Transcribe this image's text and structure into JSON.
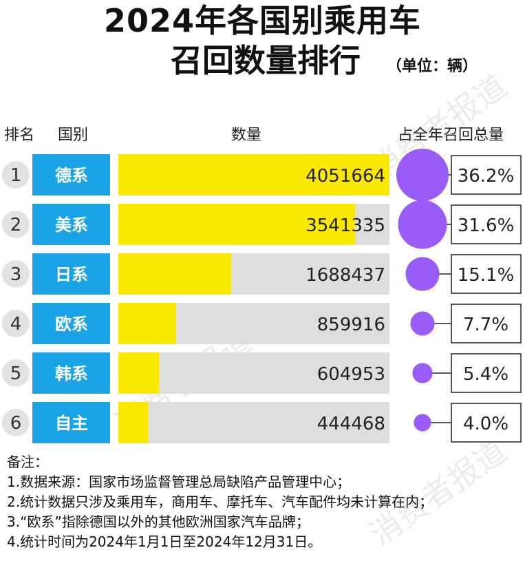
{
  "title_line1": "2024年各国别乘用车",
  "title_line2": "召回数量排行",
  "unit": "（单位：辆）",
  "headers": {
    "rank": "排名",
    "country": "国别",
    "quantity": "数量",
    "share": "占全年召回总量"
  },
  "watermark": "消费者报道",
  "colors": {
    "bar_fill": "#f9e900",
    "bar_track": "#dedede",
    "label_bg": "#1aa3e6",
    "bubble": "#9a5cf6",
    "rank_bg": "#e2e2e2"
  },
  "chart_data": {
    "type": "bar",
    "orientation": "horizontal",
    "title": "2024年各国别乘用车召回数量排行",
    "unit": "辆",
    "ranks": [
      "1",
      "2",
      "3",
      "4",
      "5",
      "6"
    ],
    "categories": [
      "德系",
      "美系",
      "日系",
      "欧系",
      "韩系",
      "自主"
    ],
    "values": [
      4051664,
      3541335,
      1688437,
      859916,
      604953,
      444468
    ],
    "value_labels": [
      "4051664",
      "3541335",
      "1688437",
      "859916",
      "604953",
      "444468"
    ],
    "share_values": [
      36.2,
      31.6,
      15.1,
      7.7,
      5.4,
      4.0
    ],
    "share_labels": [
      "36.2%",
      "31.6%",
      "15.1%",
      "7.7%",
      "5.4%",
      "4.0%"
    ],
    "xlim": [
      0,
      4051664
    ]
  },
  "notes": {
    "title": "备注：",
    "items": [
      "1.数据来源：国家市场监督管理总局缺陷产品管理中心；",
      "2.统计数据只涉及乘用车，商用车、摩托车、汽车配件均未计算在内；",
      "3.“欧系”指除德国以外的其他欧洲国家汽车品牌；",
      "4.统计时间为2024年1月1日至2024年12月31日。"
    ]
  }
}
